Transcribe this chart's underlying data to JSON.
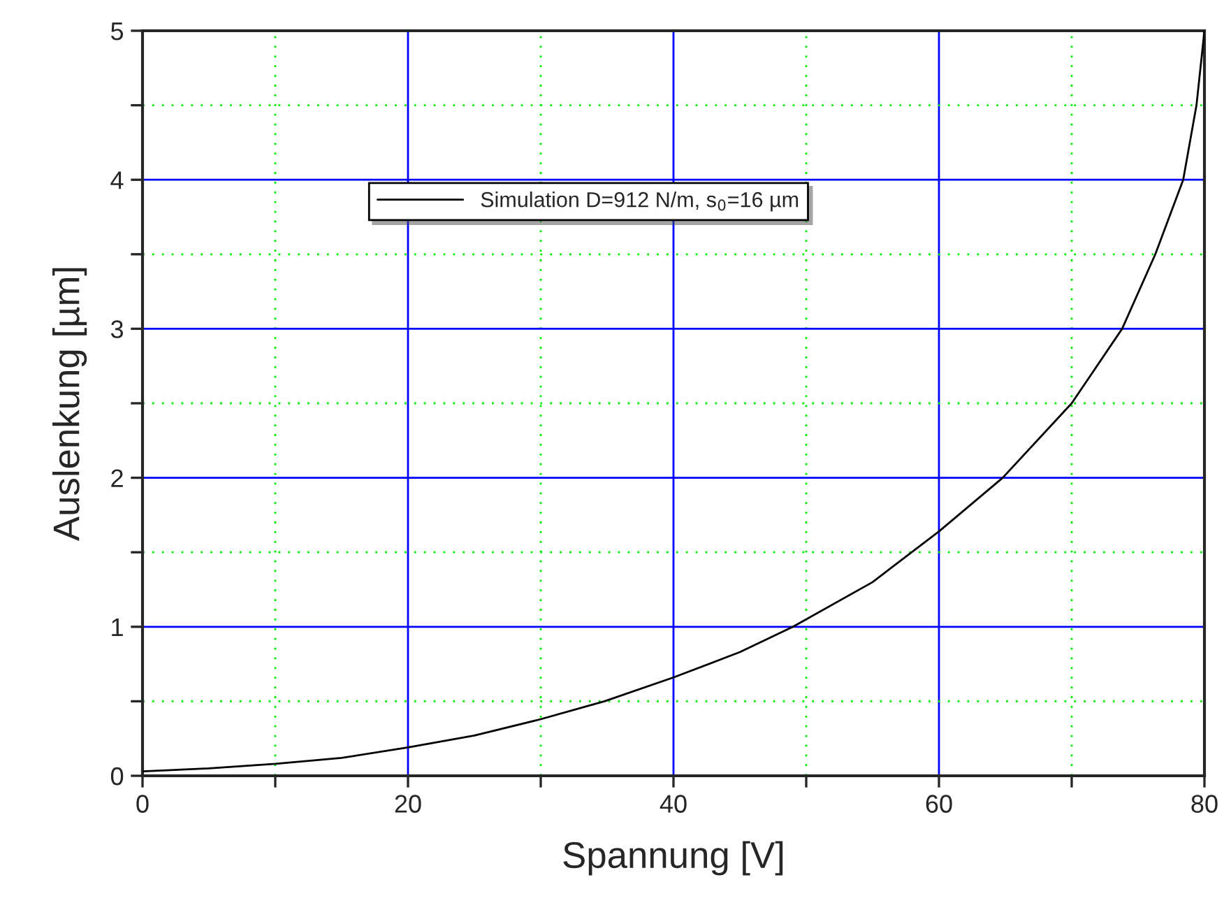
{
  "chart_data": {
    "type": "line",
    "xlabel": "Spannung [V]",
    "ylabel": "Auslenkung [µm]",
    "x": [
      0,
      5,
      10,
      15,
      20,
      25,
      30,
      34.8,
      40,
      45,
      49,
      55,
      60,
      64.8,
      70,
      73.8,
      76.3,
      78.4,
      79.4,
      80
    ],
    "series": [
      {
        "name": "Simulation D=912 N/m, s$_{0}$=16 µm",
        "color": "#000000",
        "values": [
          0.03,
          0.05,
          0.08,
          0.12,
          0.19,
          0.27,
          0.38,
          0.5,
          0.66,
          0.83,
          1.0,
          1.3,
          1.64,
          2.0,
          2.5,
          3.0,
          3.5,
          4.0,
          4.5,
          5.0
        ]
      }
    ],
    "xlim": [
      0,
      80
    ],
    "xticks": [
      0,
      {
        "value": 10,
        "label": null
      },
      20,
      {
        "value": 30,
        "label": null
      },
      40,
      {
        "value": 50,
        "label": null
      },
      60,
      {
        "value": 70,
        "label": null
      },
      80
    ],
    "ylim": [
      0,
      5
    ],
    "yticks": [
      0,
      {
        "value": 0.5,
        "label": null
      },
      1,
      {
        "value": 1.5,
        "label": null
      },
      2,
      {
        "value": 2.5,
        "label": null
      },
      3,
      {
        "value": 3.5,
        "label": null
      },
      4,
      {
        "value": 4.5,
        "label": null
      },
      5
    ],
    "grid": true,
    "legend": "top",
    "marker": "none",
    "line_style": "solid"
  }
}
